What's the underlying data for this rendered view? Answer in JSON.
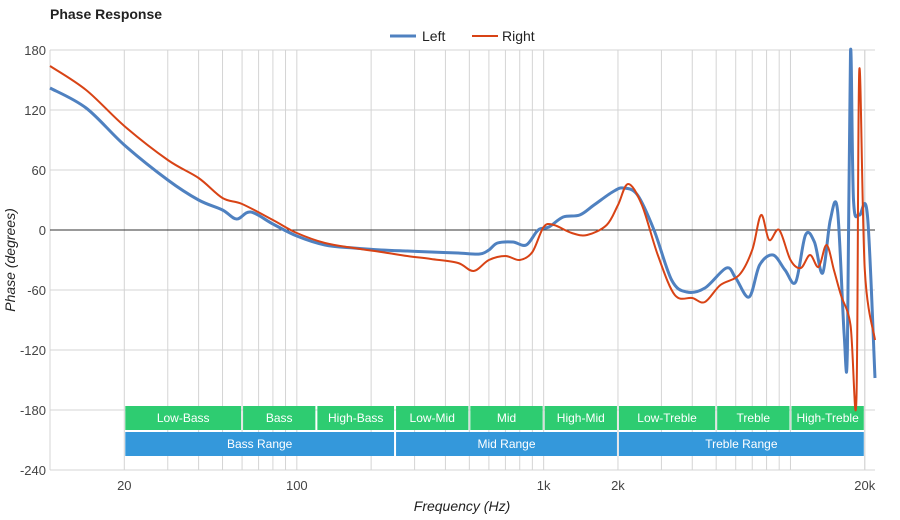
{
  "chart_data": {
    "type": "line",
    "title": "Phase Response",
    "xlabel": "Frequency (Hz)",
    "ylabel": "Phase (degrees)",
    "x_scale": "log",
    "xlim": [
      10,
      22000
    ],
    "ylim": [
      -240,
      180
    ],
    "yticks": [
      180,
      120,
      60,
      0,
      -60,
      -120,
      -180,
      -240
    ],
    "xticks": [
      {
        "value": 20,
        "label": "20"
      },
      {
        "value": 100,
        "label": "100"
      },
      {
        "value": 1000,
        "label": "1k"
      },
      {
        "value": 2000,
        "label": "2k"
      },
      {
        "value": 20000,
        "label": "20k"
      }
    ],
    "grid": true,
    "legend_position": "top-center",
    "series": [
      {
        "name": "Left",
        "color": "#4f81c0",
        "points": [
          [
            10,
            142
          ],
          [
            14,
            122
          ],
          [
            20,
            85
          ],
          [
            30,
            50
          ],
          [
            40,
            30
          ],
          [
            50,
            20
          ],
          [
            57,
            11
          ],
          [
            65,
            18
          ],
          [
            80,
            6
          ],
          [
            100,
            -6
          ],
          [
            130,
            -15
          ],
          [
            170,
            -18
          ],
          [
            220,
            -20
          ],
          [
            280,
            -21
          ],
          [
            350,
            -22
          ],
          [
            450,
            -23
          ],
          [
            550,
            -24
          ],
          [
            600,
            -20
          ],
          [
            650,
            -13
          ],
          [
            750,
            -12
          ],
          [
            850,
            -15
          ],
          [
            950,
            0
          ],
          [
            1050,
            3
          ],
          [
            1200,
            13
          ],
          [
            1400,
            15
          ],
          [
            1600,
            25
          ],
          [
            1900,
            38
          ],
          [
            2100,
            42
          ],
          [
            2400,
            35
          ],
          [
            2800,
            0
          ],
          [
            3300,
            -50
          ],
          [
            3800,
            -62
          ],
          [
            4500,
            -58
          ],
          [
            5500,
            -38
          ],
          [
            6000,
            -48
          ],
          [
            6800,
            -67
          ],
          [
            7500,
            -35
          ],
          [
            8500,
            -25
          ],
          [
            9500,
            -40
          ],
          [
            10500,
            -52
          ],
          [
            11500,
            -5
          ],
          [
            12500,
            -12
          ],
          [
            13500,
            -43
          ],
          [
            14500,
            10
          ],
          [
            15500,
            20
          ],
          [
            16500,
            -105
          ],
          [
            17000,
            -120
          ],
          [
            17500,
            178
          ],
          [
            18000,
            30
          ],
          [
            19000,
            15
          ],
          [
            20500,
            15
          ],
          [
            22000,
            -148
          ]
        ]
      },
      {
        "name": "Right",
        "color": "#d84315",
        "points": [
          [
            10,
            164
          ],
          [
            14,
            140
          ],
          [
            20,
            104
          ],
          [
            30,
            70
          ],
          [
            40,
            52
          ],
          [
            50,
            32
          ],
          [
            60,
            26
          ],
          [
            80,
            10
          ],
          [
            100,
            -3
          ],
          [
            130,
            -13
          ],
          [
            170,
            -18
          ],
          [
            220,
            -22
          ],
          [
            280,
            -26
          ],
          [
            350,
            -29
          ],
          [
            450,
            -33
          ],
          [
            520,
            -41
          ],
          [
            600,
            -30
          ],
          [
            700,
            -26
          ],
          [
            800,
            -30
          ],
          [
            900,
            -22
          ],
          [
            1000,
            3
          ],
          [
            1100,
            5
          ],
          [
            1300,
            -3
          ],
          [
            1500,
            -5
          ],
          [
            1800,
            5
          ],
          [
            2000,
            25
          ],
          [
            2200,
            46
          ],
          [
            2500,
            25
          ],
          [
            2900,
            -25
          ],
          [
            3400,
            -65
          ],
          [
            4000,
            -68
          ],
          [
            4500,
            -72
          ],
          [
            5200,
            -55
          ],
          [
            6200,
            -45
          ],
          [
            7000,
            -20
          ],
          [
            7600,
            15
          ],
          [
            8200,
            -10
          ],
          [
            9000,
            0
          ],
          [
            10000,
            -30
          ],
          [
            11000,
            -38
          ],
          [
            12000,
            -25
          ],
          [
            13000,
            -37
          ],
          [
            14000,
            -15
          ],
          [
            15000,
            -40
          ],
          [
            16000,
            -65
          ],
          [
            17500,
            -95
          ],
          [
            18500,
            -170
          ],
          [
            19000,
            160
          ],
          [
            20000,
            -40
          ],
          [
            22000,
            -110
          ]
        ]
      }
    ],
    "bands": {
      "row1": [
        {
          "label": "Low-Bass",
          "start": 20,
          "end": 60
        },
        {
          "label": "Bass",
          "start": 60,
          "end": 120
        },
        {
          "label": "High-Bass",
          "start": 120,
          "end": 250
        },
        {
          "label": "Low-Mid",
          "start": 250,
          "end": 500
        },
        {
          "label": "Mid",
          "start": 500,
          "end": 1000
        },
        {
          "label": "High-Mid",
          "start": 1000,
          "end": 2000
        },
        {
          "label": "Low-Treble",
          "start": 2000,
          "end": 5000
        },
        {
          "label": "Treble",
          "start": 5000,
          "end": 10000
        },
        {
          "label": "High-Treble",
          "start": 10000,
          "end": 20000
        }
      ],
      "row2": [
        {
          "label": "Bass Range",
          "start": 20,
          "end": 250
        },
        {
          "label": "Mid Range",
          "start": 250,
          "end": 2000
        },
        {
          "label": "Treble Range",
          "start": 2000,
          "end": 20000
        }
      ],
      "row1_color": "#2ecc71",
      "row2_color": "#3498db"
    }
  }
}
